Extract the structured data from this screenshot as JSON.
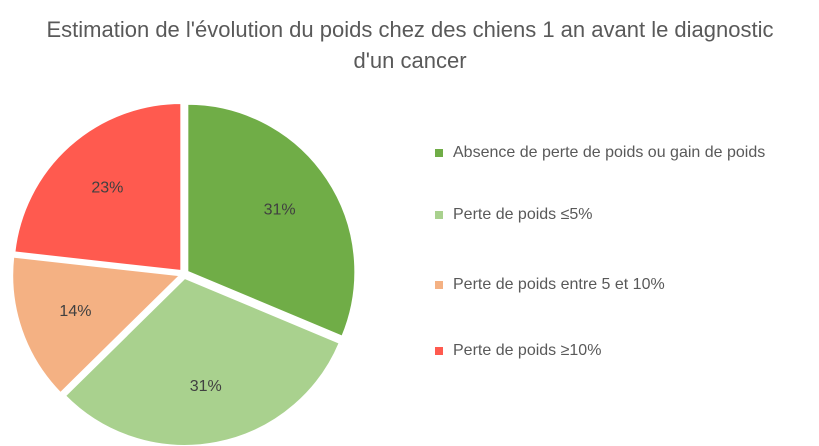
{
  "chart_data": {
    "type": "pie",
    "title": "Estimation de l'évolution du poids chez des chiens 1 an avant le diagnostic d'un cancer",
    "categories": [
      "Absence de perte de poids ou gain de poids",
      "Perte de poids ≤5%",
      "Perte de poids entre 5 et 10%",
      "Perte de poids ≥10%"
    ],
    "values": [
      31,
      31,
      14,
      23
    ],
    "value_labels": [
      "31%",
      "31%",
      "14%",
      "23%"
    ],
    "colors": [
      "#70ad47",
      "#a9d18e",
      "#f4b183",
      "#ff5a4f"
    ],
    "legend": "right"
  }
}
